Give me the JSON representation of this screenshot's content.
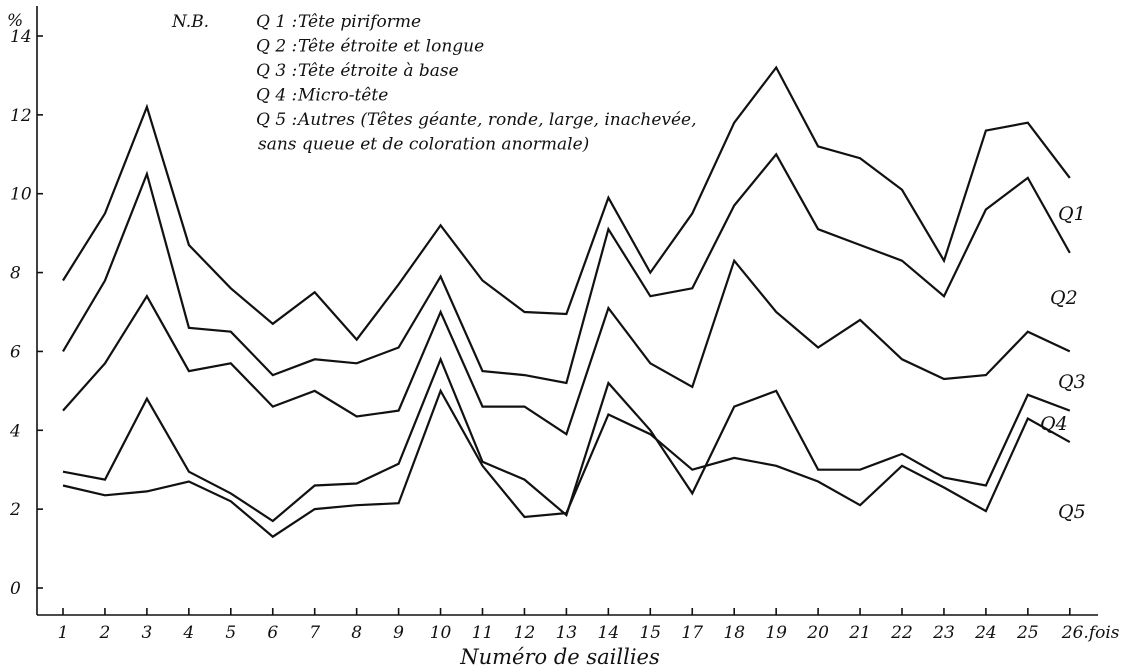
{
  "chart_data": {
    "type": "line",
    "categories": [
      "1",
      "2",
      "3",
      "4",
      "5",
      "6",
      "7",
      "8",
      "9",
      "10",
      "11",
      "12",
      "13",
      "14",
      "15",
      "17",
      "18",
      "19",
      "20",
      "21",
      "22",
      "23",
      "24",
      "25",
      "26"
    ],
    "x_suffix_last": ".fois",
    "xlabel": "Numéro de saillies",
    "ylabel": "%",
    "ylim": [
      0,
      14
    ],
    "yticks": [
      "0",
      "2",
      "4",
      "6",
      "8",
      "10",
      "12",
      "14"
    ],
    "grid": false,
    "legend": {
      "prefix": "N.B.",
      "items": [
        {
          "key": "Q 1 :",
          "text": "Tête piriforme"
        },
        {
          "key": "Q 2 :",
          "text": "Tête étroite et longue"
        },
        {
          "key": "Q 3 :",
          "text": "Tête étroite à base"
        },
        {
          "key": "Q 4 :",
          "text": "Micro-tête"
        },
        {
          "key": "Q 5 :",
          "text": "Autres (Têtes géante, ronde, large, inachevée,"
        },
        {
          "key": "",
          "text": "sans queue et de coloration anormale)"
        }
      ]
    },
    "series": [
      {
        "name": "Q1",
        "values": [
          7.8,
          9.5,
          12.2,
          8.7,
          7.6,
          6.7,
          7.5,
          6.3,
          7.7,
          9.2,
          7.8,
          7.0,
          6.95,
          9.9,
          8.0,
          9.5,
          11.8,
          13.2,
          11.2,
          10.9,
          10.1,
          8.3,
          11.6,
          11.8,
          10.4
        ]
      },
      {
        "name": "Q2",
        "values": [
          6.0,
          7.8,
          10.5,
          6.6,
          6.5,
          5.4,
          5.8,
          5.7,
          6.1,
          7.9,
          5.5,
          5.4,
          5.2,
          9.1,
          7.4,
          7.6,
          9.7,
          11.0,
          9.1,
          8.7,
          8.3,
          7.4,
          9.6,
          10.4,
          8.5
        ]
      },
      {
        "name": "Q3",
        "values": [
          4.5,
          5.7,
          7.4,
          5.5,
          5.7,
          4.6,
          5.0,
          4.35,
          4.5,
          7.0,
          4.6,
          4.6,
          3.9,
          7.1,
          5.7,
          5.1,
          8.3,
          7.0,
          6.1,
          6.8,
          5.8,
          5.3,
          5.4,
          6.5,
          6.0
        ]
      },
      {
        "name": "Q4",
        "values": [
          2.95,
          2.75,
          4.8,
          2.95,
          2.4,
          1.7,
          2.6,
          2.65,
          3.15,
          5.8,
          3.2,
          2.75,
          1.85,
          5.2,
          4.0,
          2.4,
          4.6,
          5.0,
          3.0,
          3.0,
          3.4,
          2.8,
          2.6,
          4.9,
          4.5
        ]
      },
      {
        "name": "Q5",
        "values": [
          2.6,
          2.35,
          2.45,
          2.7,
          2.2,
          1.3,
          2.0,
          2.1,
          2.15,
          5.0,
          3.1,
          1.8,
          1.9,
          4.4,
          3.9,
          3.0,
          3.3,
          3.1,
          2.7,
          2.1,
          3.1,
          2.55,
          1.95,
          4.3,
          3.7
        ]
      }
    ]
  }
}
